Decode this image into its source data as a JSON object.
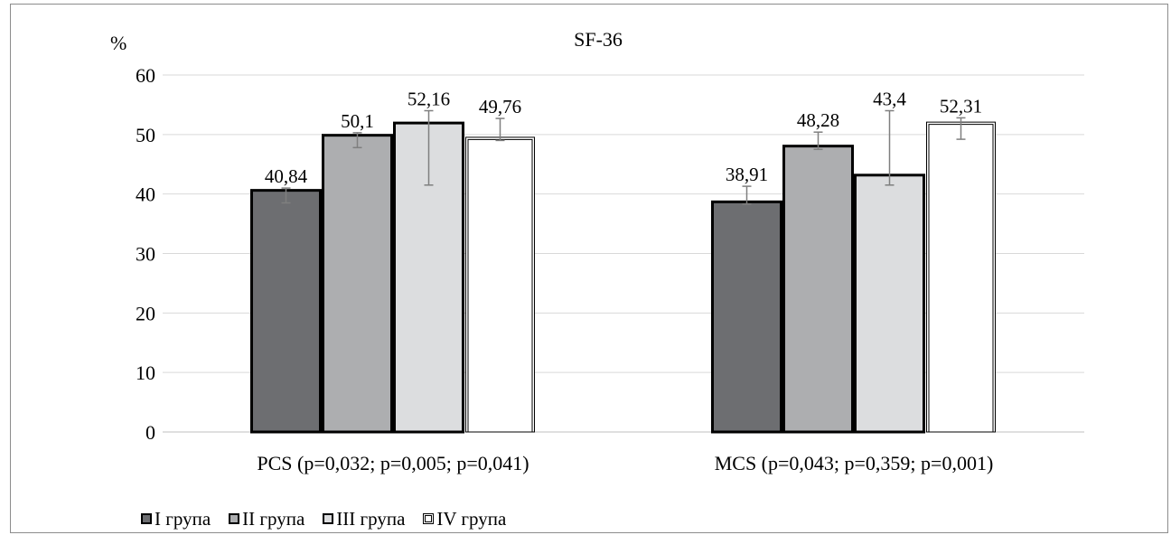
{
  "chart_data": {
    "type": "bar",
    "title": "SF-36",
    "ylabel": "%",
    "ylim": [
      0,
      60
    ],
    "yticks": [
      0,
      10,
      20,
      30,
      40,
      50,
      60
    ],
    "grid": true,
    "legend_position": "bottom-left",
    "categories": [
      "PCS (p=0,032; p=0,005; p=0,041)",
      "MCS (p=0,043; p=0,359; p=0,001)"
    ],
    "series": [
      {
        "name": "I група",
        "values": [
          40.84,
          38.91
        ],
        "labels": [
          "40,84",
          "38,91"
        ],
        "err_low": [
          38.5,
          38.3
        ],
        "err_high": [
          41.0,
          41.3
        ],
        "color": "#6d6e71"
      },
      {
        "name": "II група",
        "values": [
          50.1,
          48.28
        ],
        "labels": [
          "50,1",
          "48,28"
        ],
        "err_low": [
          47.8,
          47.5
        ],
        "err_high": [
          50.3,
          50.4
        ],
        "color": "#adaeb0"
      },
      {
        "name": "III група",
        "values": [
          52.16,
          43.4
        ],
        "labels": [
          "52,16",
          "43,4"
        ],
        "err_low": [
          41.5,
          41.5
        ],
        "err_high": [
          54.0,
          54.0
        ],
        "color": "#dcdddf"
      },
      {
        "name": "IV група",
        "values": [
          49.76,
          52.31
        ],
        "labels": [
          "49,76",
          "52,31"
        ],
        "err_low": [
          49.0,
          49.2
        ],
        "err_high": [
          52.7,
          52.8
        ],
        "color": "#ffffff"
      }
    ]
  }
}
